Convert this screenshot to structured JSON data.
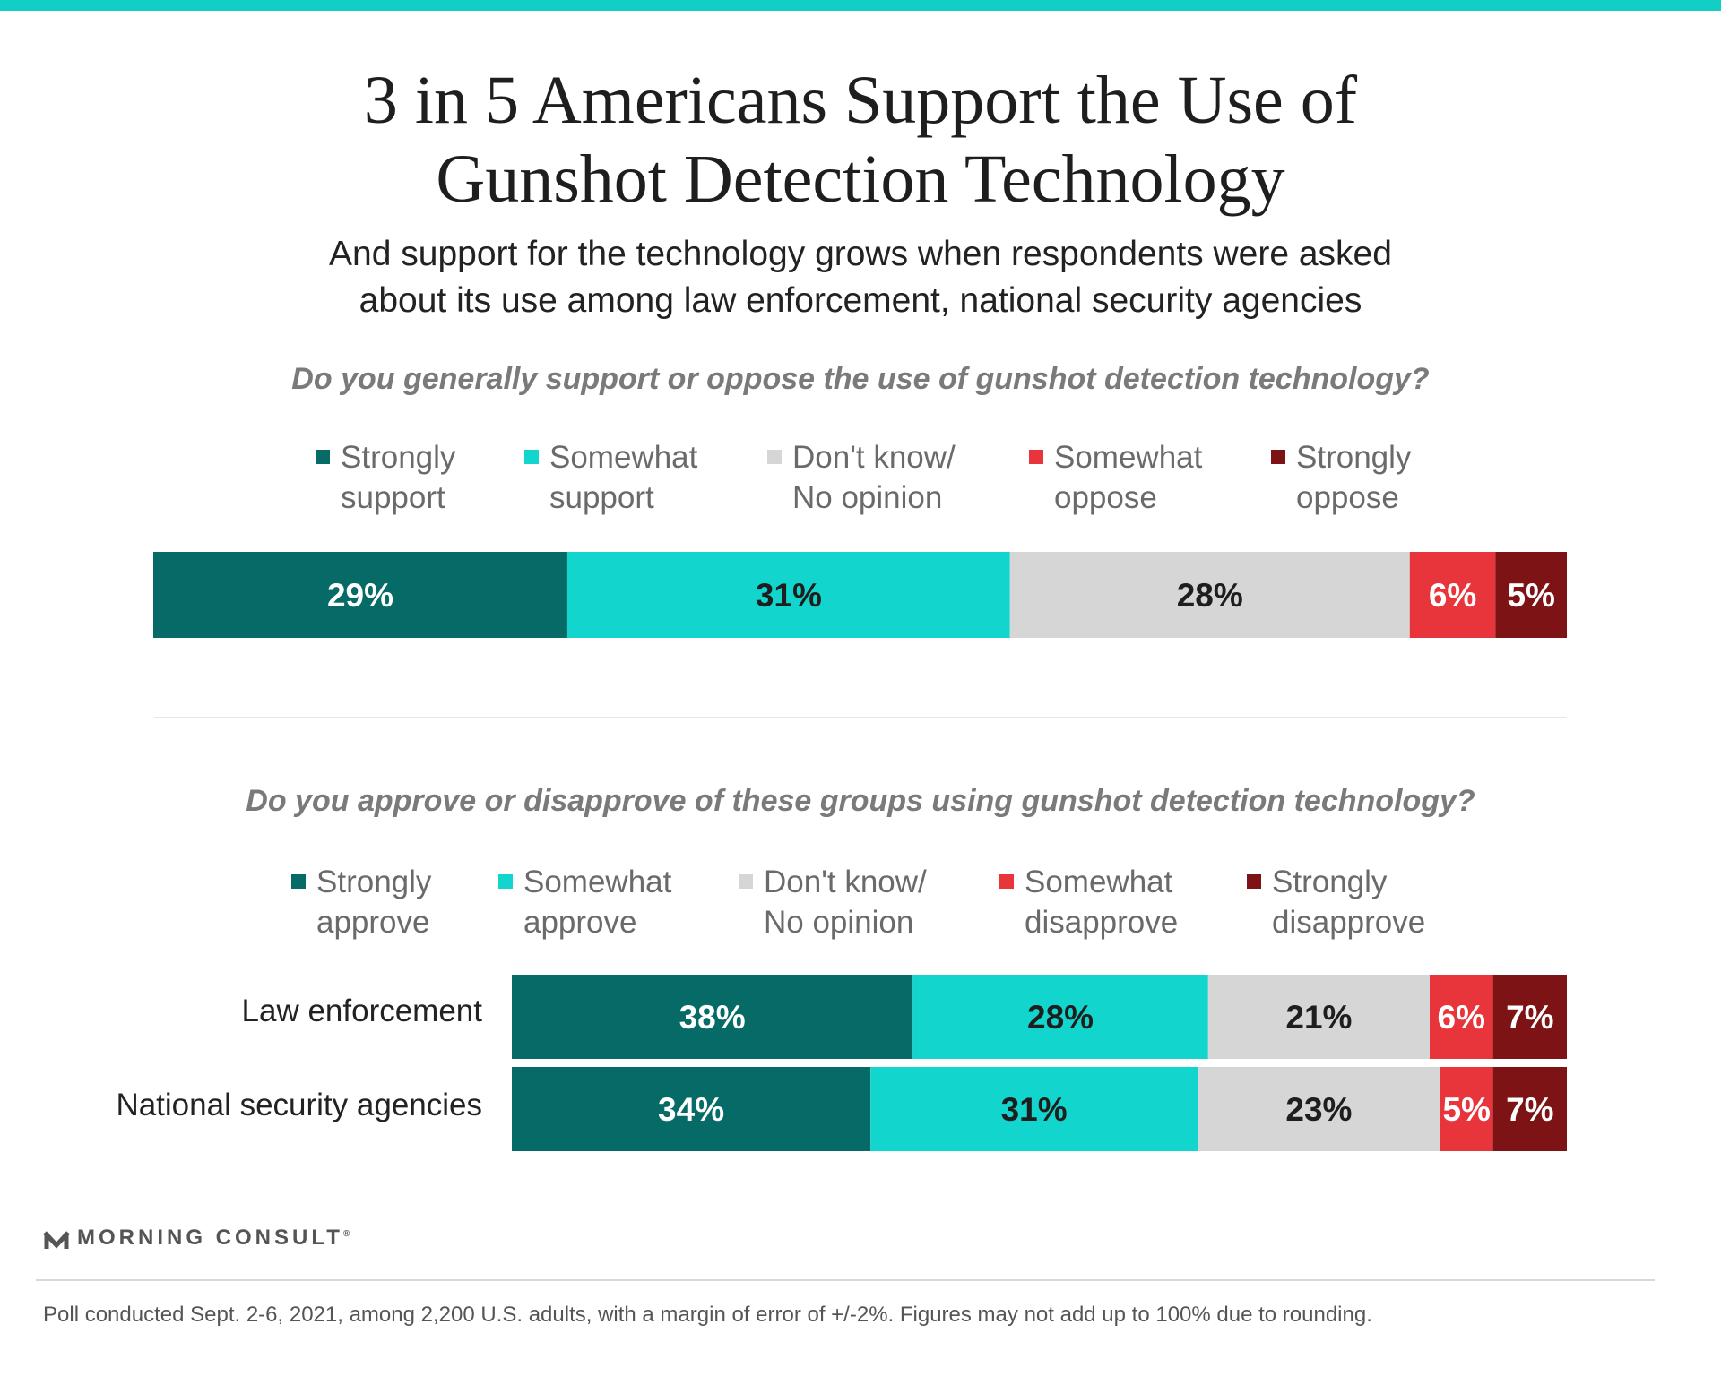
{
  "header": {
    "title_line1": "3 in 5 Americans Support the Use of",
    "title_line2": "Gunshot Detection Technology",
    "subtitle_line1": "And support for the technology grows when respondents were asked",
    "subtitle_line2": "about its use among law enforcement, national security agencies"
  },
  "colors": {
    "accent": "#12cfc6",
    "strong_positive": "#066b66",
    "somewhat_positive": "#12d6cd",
    "neutral": "#d6d6d6",
    "somewhat_negative": "#e8343b",
    "strong_negative": "#7e1315"
  },
  "chart_data": [
    {
      "type": "bar",
      "stacked": true,
      "orientation": "horizontal",
      "title": "Do you generally support or oppose the use of gunshot detection technology?",
      "categories": [
        ""
      ],
      "legend": [
        {
          "line1": "Strongly",
          "line2": "support",
          "color": "#066b66"
        },
        {
          "line1": "Somewhat",
          "line2": "support",
          "color": "#12d6cd"
        },
        {
          "line1": "Don't know/",
          "line2": "No opinion",
          "color": "#d6d6d6"
        },
        {
          "line1": "Somewhat",
          "line2": "oppose",
          "color": "#e8343b"
        },
        {
          "line1": "Strongly",
          "line2": "oppose",
          "color": "#7e1315"
        }
      ],
      "series": [
        {
          "name": "Strongly support",
          "values": [
            29
          ],
          "color": "#066b66",
          "text_color": "#ffffff"
        },
        {
          "name": "Somewhat support",
          "values": [
            31
          ],
          "color": "#12d6cd",
          "text_color": "#1e1e1e"
        },
        {
          "name": "Don't know/No opinion",
          "values": [
            28
          ],
          "color": "#d6d6d6",
          "text_color": "#1e1e1e"
        },
        {
          "name": "Somewhat oppose",
          "values": [
            6
          ],
          "color": "#e8343b",
          "text_color": "#ffffff"
        },
        {
          "name": "Strongly oppose",
          "values": [
            5
          ],
          "color": "#7e1315",
          "text_color": "#ffffff"
        }
      ],
      "xlim": [
        0,
        99
      ]
    },
    {
      "type": "bar",
      "stacked": true,
      "orientation": "horizontal",
      "title": "Do you approve or disapprove of these groups using gunshot detection technology?",
      "categories": [
        "Law enforcement",
        "National security agencies"
      ],
      "legend": [
        {
          "line1": "Strongly",
          "line2": "approve",
          "color": "#066b66"
        },
        {
          "line1": "Somewhat",
          "line2": "approve",
          "color": "#12d6cd"
        },
        {
          "line1": "Don't know/",
          "line2": "No opinion",
          "color": "#d6d6d6"
        },
        {
          "line1": "Somewhat",
          "line2": "disapprove",
          "color": "#e8343b"
        },
        {
          "line1": "Strongly",
          "line2": "disapprove",
          "color": "#7e1315"
        }
      ],
      "series": [
        {
          "name": "Strongly approve",
          "values": [
            38,
            34
          ],
          "color": "#066b66",
          "text_color": "#ffffff"
        },
        {
          "name": "Somewhat approve",
          "values": [
            28,
            31
          ],
          "color": "#12d6cd",
          "text_color": "#1e1e1e"
        },
        {
          "name": "Don't know/No opinion",
          "values": [
            21,
            23
          ],
          "color": "#d6d6d6",
          "text_color": "#1e1e1e"
        },
        {
          "name": "Somewhat disapprove",
          "values": [
            6,
            5
          ],
          "color": "#e8343b",
          "text_color": "#ffffff"
        },
        {
          "name": "Strongly disapprove",
          "values": [
            7,
            7
          ],
          "color": "#7e1315",
          "text_color": "#ffffff"
        }
      ],
      "xlim": [
        0,
        100
      ]
    }
  ],
  "brand": {
    "name": "MORNING CONSULT",
    "mark": "®"
  },
  "footnote": "Poll conducted Sept. 2-6, 2021, among 2,200 U.S. adults, with a margin of error of +/-2%. Figures may not add up to 100% due to rounding."
}
